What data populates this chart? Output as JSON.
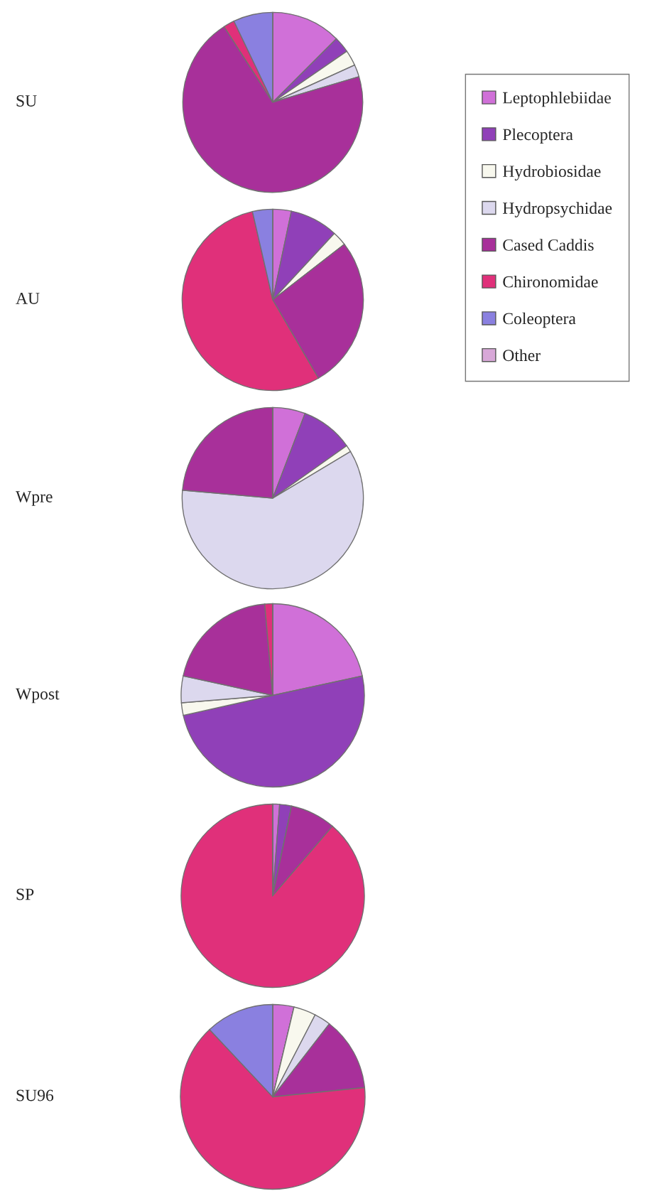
{
  "chart_data": [
    {
      "type": "pie",
      "title": "SU",
      "legend": "right",
      "categories": [
        "Leptophlebiidae",
        "Plecoptera",
        "Hydrobiosidae",
        "Hydropsychidae",
        "Cased Caddis",
        "Chironomidae",
        "Coleoptera",
        "Other"
      ],
      "values": [
        12.5,
        2.9,
        2.8,
        2.2,
        70.5,
        2.0,
        7.1,
        0
      ],
      "colors": [
        "#d070d8",
        "#9040b8",
        "#f8f8ee",
        "#dcd8ee",
        "#a8309a",
        "#e0307a",
        "#8a80e0",
        "#d8a8d8"
      ]
    },
    {
      "type": "pie",
      "title": "AU",
      "values": [
        3.3,
        8.6,
        2.6,
        0,
        27.1,
        54.8,
        3.6,
        0
      ],
      "colors": [
        "#d070d8",
        "#9040b8",
        "#f8f8ee",
        "#dcd8ee",
        "#a8309a",
        "#e0307a",
        "#8a80e0",
        "#d8a8d8"
      ]
    },
    {
      "type": "pie",
      "title": "Wpre",
      "values": [
        5.8,
        9.4,
        1.2,
        60.0,
        23.6,
        0,
        0,
        0
      ],
      "colors": [
        "#d070d8",
        "#9040b8",
        "#f8f8ee",
        "#dcd8ee",
        "#a8309a",
        "#e0307a",
        "#8a80e0",
        "#d8a8d8"
      ]
    },
    {
      "type": "pie",
      "title": "Wpost",
      "values": [
        21.6,
        49.9,
        2.2,
        4.7,
        20.2,
        1.4,
        0,
        0
      ],
      "colors": [
        "#d070d8",
        "#9040b8",
        "#f8f8ee",
        "#dcd8ee",
        "#a8309a",
        "#e0307a",
        "#8a80e0",
        "#d8a8d8"
      ]
    },
    {
      "type": "pie",
      "title": "SP",
      "values": [
        1.2,
        2.1,
        0,
        0,
        8.0,
        88.7,
        0,
        0
      ],
      "colors": [
        "#d070d8",
        "#9040b8",
        "#f8f8ee",
        "#dcd8ee",
        "#a8309a",
        "#e0307a",
        "#8a80e0",
        "#d8a8d8"
      ]
    },
    {
      "type": "pie",
      "title": "SU96",
      "values": [
        3.7,
        0,
        3.9,
        2.9,
        12.9,
        64.6,
        12.0,
        0
      ],
      "colors": [
        "#d070d8",
        "#9040b8",
        "#f8f8ee",
        "#dcd8ee",
        "#a8309a",
        "#e0307a",
        "#8a80e0",
        "#d8a8d8"
      ]
    }
  ]
}
